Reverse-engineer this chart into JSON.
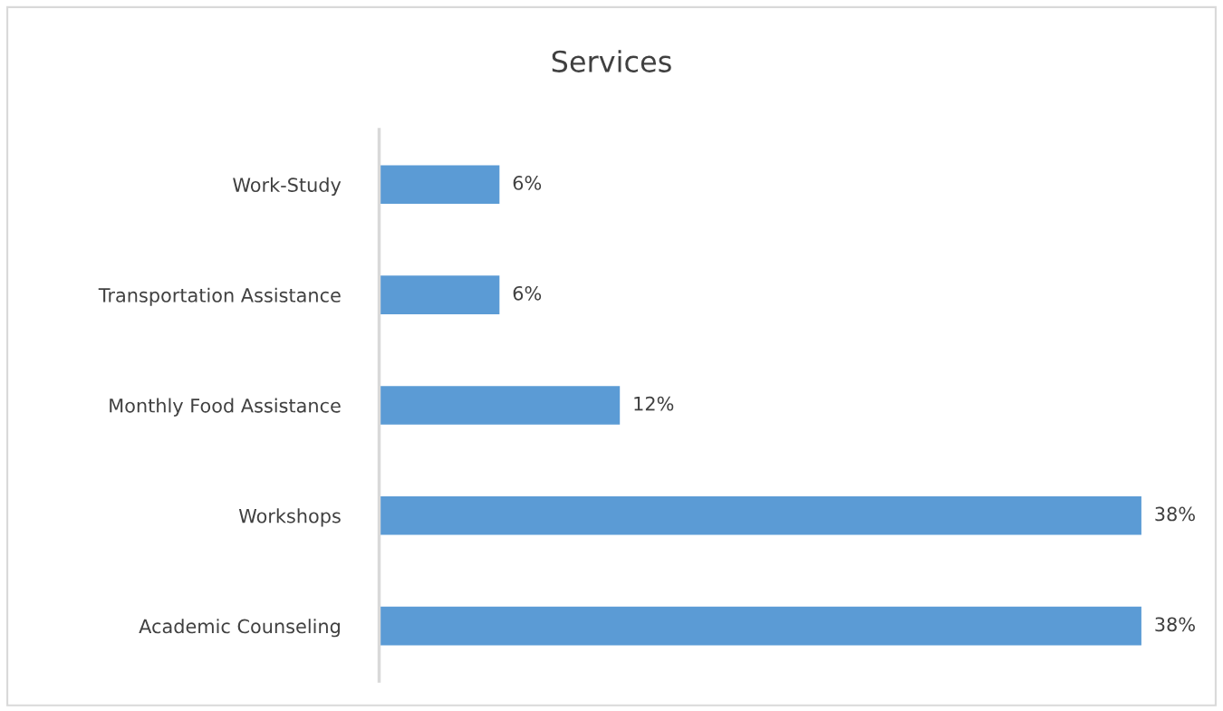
{
  "chart_data": {
    "type": "bar",
    "orientation": "horizontal",
    "title": "Services",
    "categories": [
      "Work-Study",
      "Transportation Assistance",
      "Monthly Food Assistance",
      "Workshops",
      "Academic Counseling"
    ],
    "values": [
      6,
      6,
      12,
      38,
      38
    ],
    "value_labels": [
      "6%",
      "6%",
      "12%",
      "38%",
      "38%"
    ],
    "color": "#5b9bd5",
    "grid": false,
    "legend": false,
    "tick_labels": "y"
  }
}
